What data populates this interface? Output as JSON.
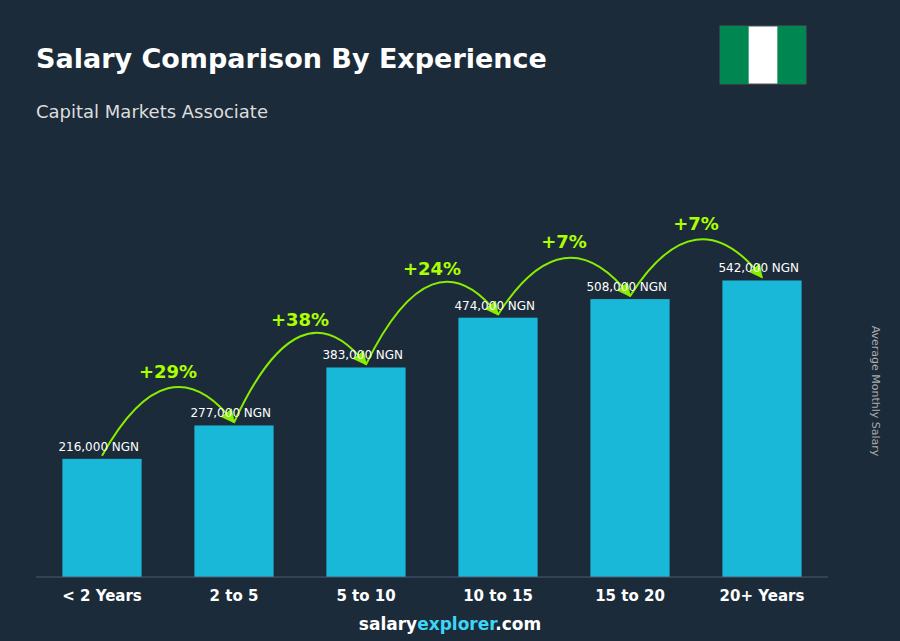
{
  "chart_data": {
    "type": "bar",
    "title": "Salary Comparison By Experience",
    "subtitle": "Capital Markets Associate",
    "y_label": "Average Monthly Salary",
    "categories": [
      "< 2 Years",
      "2 to 5",
      "5 to 10",
      "10 to 15",
      "15 to 20",
      "20+ Years"
    ],
    "values": [
      216000,
      277000,
      383000,
      474000,
      508000,
      542000
    ],
    "value_labels": [
      "216,000 NGN",
      "277,000 NGN",
      "383,000 NGN",
      "474,000 NGN",
      "508,000 NGN",
      "542,000 NGN"
    ],
    "annotations": [
      "+29%",
      "+38%",
      "+24%",
      "+7%",
      "+7%"
    ],
    "watermark": [
      "salary",
      "explorer",
      ".com"
    ],
    "color": "#1ab8d8",
    "ylim": [
      0,
      680000
    ],
    "data_labels": true,
    "tick_labels": "x",
    "grid": false
  }
}
